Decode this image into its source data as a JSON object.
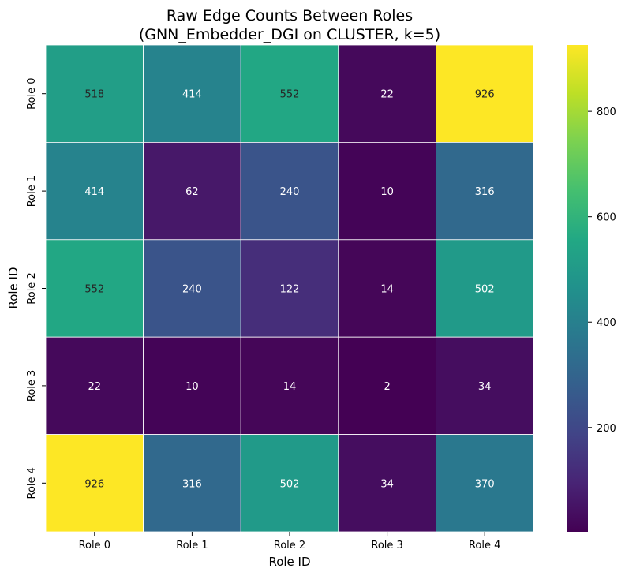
{
  "chart_data": {
    "type": "heatmap",
    "title_line1": "Raw Edge Counts Between Roles",
    "title_line2": "(GNN_Embedder_DGI on CLUSTER, k=5)",
    "xlabel": "Role ID",
    "ylabel": "Role ID",
    "x_categories": [
      "Role 0",
      "Role 1",
      "Role 2",
      "Role 3",
      "Role 4"
    ],
    "y_categories": [
      "Role 0",
      "Role 1",
      "Role 2",
      "Role 3",
      "Role 4"
    ],
    "values": [
      [
        518,
        414,
        552,
        22,
        926
      ],
      [
        414,
        62,
        240,
        10,
        316
      ],
      [
        552,
        240,
        122,
        14,
        502
      ],
      [
        22,
        10,
        14,
        2,
        34
      ],
      [
        926,
        316,
        502,
        34,
        370
      ]
    ],
    "colormap": "viridis",
    "vmin": 2,
    "vmax": 926,
    "colorbar_ticks": [
      200,
      400,
      600,
      800
    ],
    "colorbar_tick_labels": [
      "200",
      "400",
      "600",
      "800"
    ],
    "annotate_cells": true,
    "cell_separator_color": "#ffffff",
    "low_value_text_color": "#ffffff",
    "high_value_text_color": "#262626"
  }
}
